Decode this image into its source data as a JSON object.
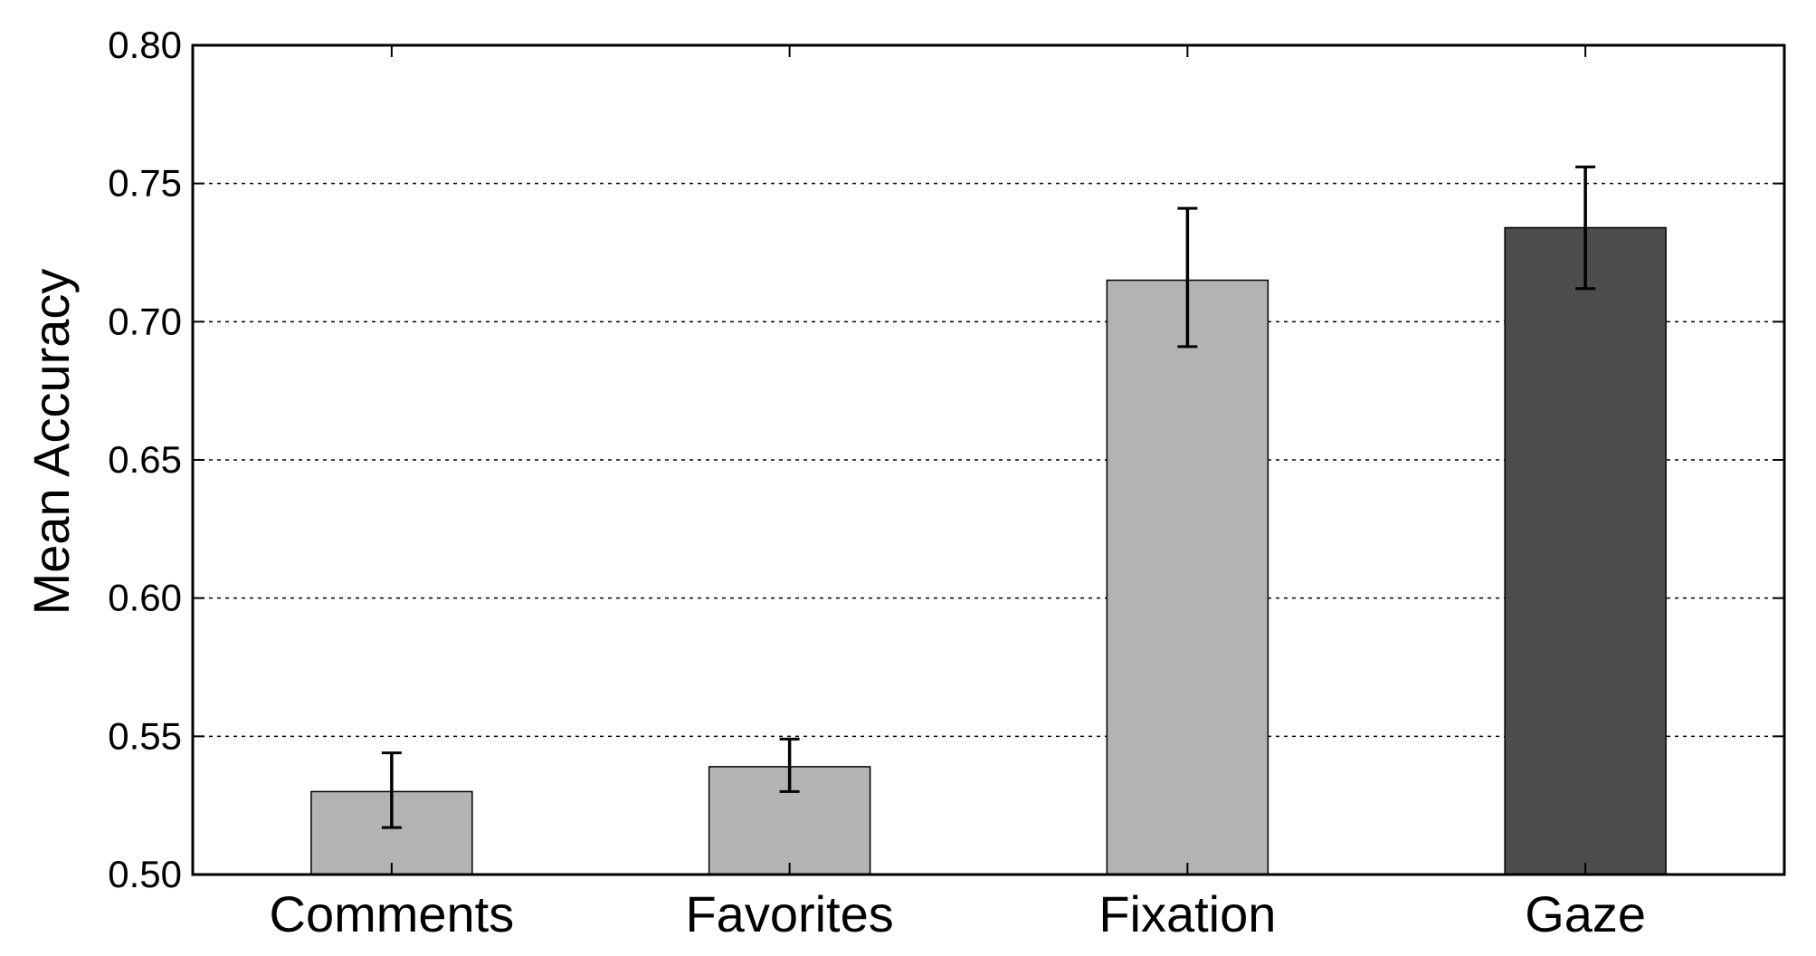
{
  "chart_data": {
    "type": "bar",
    "title": "",
    "xlabel": "",
    "ylabel": "Mean Accuracy",
    "ylim": [
      0.5,
      0.8
    ],
    "yticks": [
      0.5,
      0.55,
      0.6,
      0.65,
      0.7,
      0.75,
      0.8
    ],
    "ytick_labels": [
      "0.50",
      "0.55",
      "0.60",
      "0.65",
      "0.70",
      "0.75",
      "0.80"
    ],
    "grid": "horizontal dashed",
    "categories": [
      "Comments",
      "Favorites",
      "Fixation",
      "Gaze"
    ],
    "values": [
      0.53,
      0.539,
      0.715,
      0.734
    ],
    "error_low": [
      0.517,
      0.53,
      0.691,
      0.712
    ],
    "error_high": [
      0.544,
      0.549,
      0.741,
      0.756
    ],
    "bar_colors": [
      "#b3b3b3",
      "#b3b3b3",
      "#b3b3b3",
      "#4d4d4d"
    ]
  }
}
